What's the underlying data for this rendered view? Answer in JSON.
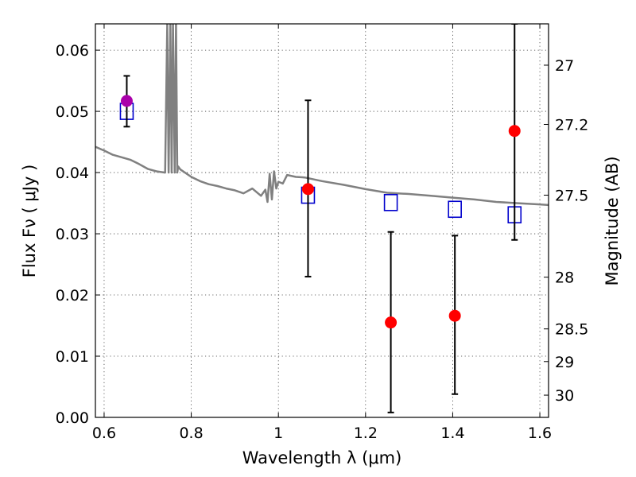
{
  "chart_data": {
    "type": "scatter",
    "title": "",
    "xlabel": "Wavelength  λ (μm)",
    "ylabel": "Flux  Fν  ( μJy )",
    "ylabel_right": "Magnitude (AB)",
    "xlim": [
      0.58,
      1.62
    ],
    "ylim": [
      0.0,
      0.0643
    ],
    "x_ticks": [
      0.6,
      0.8,
      1.0,
      1.2,
      1.4,
      1.6
    ],
    "x_tick_labels": [
      "0.6",
      "0.8",
      "1",
      "1.2",
      "1.4",
      "1.6"
    ],
    "y_ticks": [
      0.0,
      0.01,
      0.02,
      0.03,
      0.04,
      0.05,
      0.06
    ],
    "y_tick_labels": [
      "0.00",
      "0.01",
      "0.02",
      "0.03",
      "0.04",
      "0.05",
      "0.06"
    ],
    "right_ticks": [
      {
        "label": "27",
        "value": 27.0
      },
      {
        "label": "27.2",
        "value": 27.2
      },
      {
        "label": "27.5",
        "value": 27.5
      },
      {
        "label": "28",
        "value": 28.0
      },
      {
        "label": "28.5",
        "value": 28.5
      },
      {
        "label": "29",
        "value": 29.0
      },
      {
        "label": "30",
        "value": 30.0
      }
    ],
    "grid": true,
    "colors": {
      "model": "#808080",
      "model_photometry": "#0000cc",
      "observed": "#ff0000",
      "first_observed": "#aa00aa",
      "errorbar": "#000000"
    },
    "model_spectrum": {
      "x": [
        0.58,
        0.6,
        0.62,
        0.64,
        0.66,
        0.68,
        0.7,
        0.72,
        0.74,
        0.745,
        0.748,
        0.752,
        0.755,
        0.758,
        0.762,
        0.765,
        0.768,
        0.77,
        0.775,
        0.8,
        0.82,
        0.84,
        0.86,
        0.88,
        0.9,
        0.92,
        0.94,
        0.96,
        0.97,
        0.975,
        0.98,
        0.985,
        0.99,
        0.995,
        1.0,
        1.01,
        1.02,
        1.04,
        1.06,
        1.1,
        1.15,
        1.2,
        1.25,
        1.3,
        1.35,
        1.4,
        1.45,
        1.5,
        1.55,
        1.6,
        1.62
      ],
      "y": [
        0.0442,
        0.0436,
        0.0429,
        0.0425,
        0.0421,
        0.0414,
        0.0406,
        0.0402,
        0.04,
        0.0643,
        0.04,
        0.0643,
        0.04,
        0.0643,
        0.04,
        0.0643,
        0.04,
        0.041,
        0.0405,
        0.0393,
        0.0386,
        0.0381,
        0.0378,
        0.0374,
        0.0371,
        0.0366,
        0.0374,
        0.0362,
        0.0372,
        0.0352,
        0.0398,
        0.0356,
        0.0402,
        0.0374,
        0.0385,
        0.0382,
        0.0396,
        0.0393,
        0.0392,
        0.0386,
        0.038,
        0.0373,
        0.0367,
        0.0365,
        0.0362,
        0.0359,
        0.0356,
        0.0352,
        0.035,
        0.0348,
        0.0347
      ]
    },
    "series": [
      {
        "marker": "open-square",
        "x": [
          0.652,
          1.068,
          1.258,
          1.405,
          1.542
        ],
        "y": [
          0.05,
          0.0363,
          0.0351,
          0.034,
          0.0331
        ]
      },
      {
        "marker": "filled-circle",
        "x": [
          0.652,
          1.068,
          1.258,
          1.405,
          1.542
        ],
        "y": [
          0.0517,
          0.0373,
          0.0155,
          0.0166,
          0.0468
        ],
        "err_low": [
          0.0475,
          0.023,
          0.0008,
          0.0038,
          0.029
        ],
        "err_high": [
          0.0558,
          0.0518,
          0.0303,
          0.0297,
          0.0643
        ]
      }
    ]
  }
}
